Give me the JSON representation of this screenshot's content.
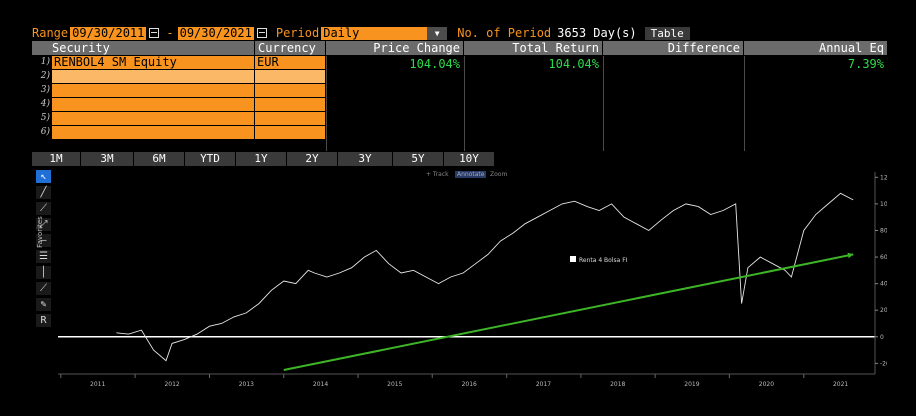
{
  "topbar": {
    "range_label": "Range",
    "range_start": "09/30/2011",
    "range_sep": "-",
    "range_end": "09/30/2021",
    "period_label": "Period",
    "period_value": "Daily",
    "num_period_label": "No. of Period",
    "num_period_value": "3653 Day(s)",
    "table_button": "Table"
  },
  "grid": {
    "headers": {
      "security": "Security",
      "currency": "Currency",
      "price_change": "Price Change",
      "total_return": "Total Return",
      "difference": "Difference",
      "annual_eq": "Annual Eq"
    },
    "rows": [
      {
        "num": "1)",
        "security": "RENBOL4 SM Equity",
        "currency": "EUR"
      },
      {
        "num": "2)",
        "security": "",
        "currency": ""
      },
      {
        "num": "3)",
        "security": "",
        "currency": ""
      },
      {
        "num": "4)",
        "security": "",
        "currency": ""
      },
      {
        "num": "5)",
        "security": "",
        "currency": ""
      },
      {
        "num": "6)",
        "security": "",
        "currency": ""
      }
    ],
    "values": {
      "price_change": "104.04%",
      "total_return": "104.04%",
      "difference": "",
      "annual_eq": "7.39%"
    }
  },
  "tabs": [
    "1M",
    "3M",
    "6M",
    "YTD",
    "1Y",
    "2Y",
    "3Y",
    "5Y",
    "10Y"
  ],
  "chart_controls": {
    "track": "+ Track",
    "annotate": "Annotate",
    "zoom": "Zoom"
  },
  "favorites_label": "Favorites",
  "colors": {
    "accent": "#f7931e",
    "positive": "#2edc4a",
    "trend": "#3db526",
    "header": "#6b6b6b"
  },
  "chart_data": {
    "type": "line",
    "series": [
      {
        "name": "Renta 4 Bolsa FI",
        "x": [
          "2011-10",
          "2011-12",
          "2012-02",
          "2012-04",
          "2012-06",
          "2012-07",
          "2012-09",
          "2012-11",
          "2013-01",
          "2013-03",
          "2013-05",
          "2013-07",
          "2013-09",
          "2013-11",
          "2014-01",
          "2014-03",
          "2014-05",
          "2014-06",
          "2014-08",
          "2014-10",
          "2014-12",
          "2015-02",
          "2015-04",
          "2015-06",
          "2015-08",
          "2015-10",
          "2015-12",
          "2016-02",
          "2016-04",
          "2016-06",
          "2016-08",
          "2016-10",
          "2016-12",
          "2017-02",
          "2017-04",
          "2017-06",
          "2017-08",
          "2017-10",
          "2017-12",
          "2018-02",
          "2018-04",
          "2018-06",
          "2018-08",
          "2018-10",
          "2018-12",
          "2019-02",
          "2019-04",
          "2019-06",
          "2019-08",
          "2019-10",
          "2019-12",
          "2020-02",
          "2020-03",
          "2020-04",
          "2020-06",
          "2020-08",
          "2020-10",
          "2020-11",
          "2021-01",
          "2021-03",
          "2021-05",
          "2021-07",
          "2021-09"
        ],
        "y": [
          3,
          2,
          5,
          -10,
          -18,
          -5,
          -2,
          2,
          8,
          10,
          15,
          18,
          25,
          35,
          42,
          40,
          50,
          48,
          45,
          48,
          52,
          60,
          65,
          55,
          48,
          50,
          45,
          40,
          45,
          48,
          55,
          62,
          72,
          78,
          85,
          90,
          95,
          100,
          102,
          98,
          95,
          100,
          90,
          85,
          80,
          88,
          95,
          100,
          98,
          92,
          95,
          100,
          25,
          52,
          60,
          55,
          50,
          45,
          80,
          92,
          100,
          108,
          103
        ]
      }
    ],
    "legend": [
      "Renta 4 Bolsa FI"
    ],
    "trendline": {
      "from": {
        "x": "2014-01",
        "y": -25
      },
      "to": {
        "x": "2021-09",
        "y": 62
      }
    },
    "baseline": 0,
    "x_ticks": [
      "2011",
      "2012",
      "2013",
      "2014",
      "2015",
      "2016",
      "2017",
      "2018",
      "2019",
      "2020",
      "2021"
    ],
    "y_ticks": [
      120,
      100,
      80,
      60,
      40,
      20,
      0,
      -20
    ],
    "ylim": [
      -28,
      124
    ],
    "grid": false,
    "legend_position": "center-right"
  }
}
